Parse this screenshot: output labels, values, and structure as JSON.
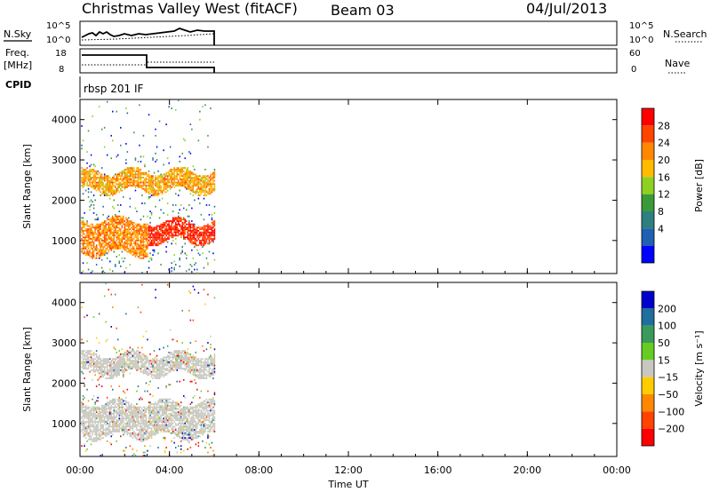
{
  "header": {
    "title": "Christmas Valley West (fitACF)",
    "beam": "Beam 03",
    "date": "04/Jul/2013"
  },
  "panels": {
    "nsky": {
      "label": "N.Sky",
      "tick_high": "10^5",
      "tick_low": "10^0",
      "right_tick_high": "10^5",
      "right_tick_low": "10^0",
      "right_label": "N.Search"
    },
    "freq": {
      "label_line1": "Freq.",
      "label_line2": "[MHz]",
      "tick_high": "18",
      "tick_low": "8",
      "right_tick_high": "60",
      "right_tick_low": "0",
      "right_label": "Nave"
    },
    "cpid": {
      "label": "CPID",
      "value": "rbsp 201 IF"
    }
  },
  "chart_data": [
    {
      "type": "heatmap",
      "name": "power",
      "xlabel": "",
      "ylabel": "Slant Range [km]",
      "xlim_hours": [
        0,
        24
      ],
      "ylim_km": [
        180,
        4500
      ],
      "yticks": [
        "1000",
        "2000",
        "3000",
        "4000"
      ],
      "colorbar": {
        "label": "Power [dB]",
        "ticks": [
          "28",
          "24",
          "20",
          "16",
          "12",
          "8",
          "4"
        ],
        "colors": [
          "#ff0000",
          "#ff4400",
          "#ff8800",
          "#ffbb00",
          "#90d020",
          "#3a9a3a",
          "#2e7f7f",
          "#2060b0",
          "#0000ff"
        ]
      },
      "data_end_hour": 6,
      "features": [
        {
          "hours": [
            0,
            6
          ],
          "range_km": [
            2200,
            2700
          ],
          "level_db": 18
        },
        {
          "hours": [
            0,
            3
          ],
          "range_km": [
            650,
            1500
          ],
          "level_db": 20
        },
        {
          "hours": [
            3,
            6
          ],
          "range_km": [
            950,
            1450
          ],
          "level_db": 26
        }
      ]
    },
    {
      "type": "heatmap",
      "name": "velocity",
      "xlabel": "Time UT",
      "ylabel": "Slant Range [km]",
      "xticks": [
        "00:00",
        "04:00",
        "08:00",
        "12:00",
        "16:00",
        "20:00",
        "00:00"
      ],
      "xlim_hours": [
        0,
        24
      ],
      "ylim_km": [
        180,
        4500
      ],
      "yticks": [
        "1000",
        "2000",
        "3000",
        "4000"
      ],
      "colorbar": {
        "label": "Velocity [m s⁻¹]",
        "ticks": [
          "200",
          "100",
          "50",
          "15",
          "−15",
          "−50",
          "−100",
          "−200"
        ],
        "colors": [
          "#0000cc",
          "#1e6e9e",
          "#3a9a5a",
          "#66cc22",
          "#c8c8c0",
          "#ffcc00",
          "#ff8800",
          "#ff4400",
          "#ff0000"
        ]
      },
      "data_end_hour": 6,
      "features": [
        {
          "hours": [
            0,
            6
          ],
          "range_km": [
            2200,
            2700
          ],
          "velocity": 0
        },
        {
          "hours": [
            0,
            6
          ],
          "range_km": [
            650,
            1500
          ],
          "velocity": 0
        }
      ]
    }
  ]
}
